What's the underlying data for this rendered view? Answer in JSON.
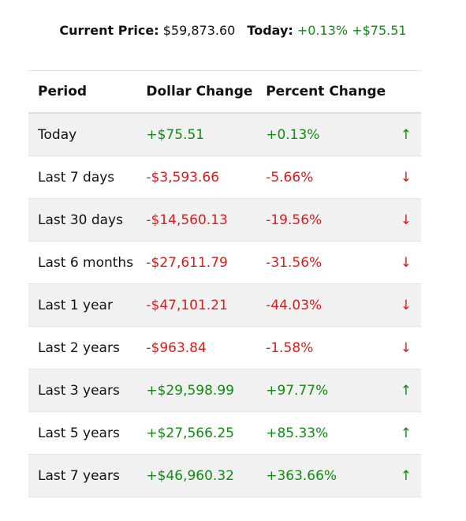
{
  "header": {
    "price_label": "Current Price:",
    "price": "$59,873.60",
    "today_label": "Today:",
    "today_percent": "+0.13%",
    "today_dollar": "+$75.51"
  },
  "colors": {
    "up": "#138a13",
    "down": "#d41f1f"
  },
  "table": {
    "columns": [
      "Period",
      "Dollar Change",
      "Percent Change"
    ],
    "rows": [
      [
        "Today",
        "+$75.51",
        "+0.13%",
        "↑"
      ],
      [
        "Last 7 days",
        "-$3,593.66",
        "-5.66%",
        "↓"
      ],
      [
        "Last 30 days",
        "-$14,560.13",
        "-19.56%",
        "↓"
      ],
      [
        "Last 6 months",
        "-$27,611.79",
        "-31.56%",
        "↓"
      ],
      [
        "Last 1 year",
        "-$47,101.21",
        "-44.03%",
        "↓"
      ],
      [
        "Last 2 years",
        "-$963.84",
        "-1.58%",
        "↓"
      ],
      [
        "Last 3 years",
        "+$29,598.99",
        "+97.77%",
        "↑"
      ],
      [
        "Last 5 years",
        "+$27,566.25",
        "+85.33%",
        "↑"
      ],
      [
        "Last 7 years",
        "+$46,960.32",
        "+363.66%",
        "↑"
      ]
    ]
  }
}
